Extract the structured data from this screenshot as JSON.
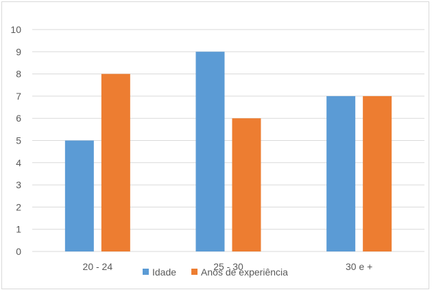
{
  "chart_data": {
    "type": "bar",
    "title": "",
    "xlabel": "",
    "ylabel": "",
    "categories": [
      "20 - 24",
      "25 - 30",
      "30  e +"
    ],
    "series": [
      {
        "name": "Idade",
        "values": [
          5,
          9,
          7
        ],
        "color": "#5b9bd5"
      },
      {
        "name": "Anos de experiência",
        "values": [
          8,
          6,
          7
        ],
        "color": "#ed7d31"
      }
    ],
    "ylim": [
      0,
      10
    ],
    "yticks": [
      0,
      1,
      2,
      3,
      4,
      5,
      6,
      7,
      8,
      9,
      10
    ],
    "grid": true,
    "legend_position": "bottom",
    "colors": {
      "gridline": "#d9d9d9",
      "axis_text": "#595959",
      "frame": "#d9d9d9"
    }
  }
}
